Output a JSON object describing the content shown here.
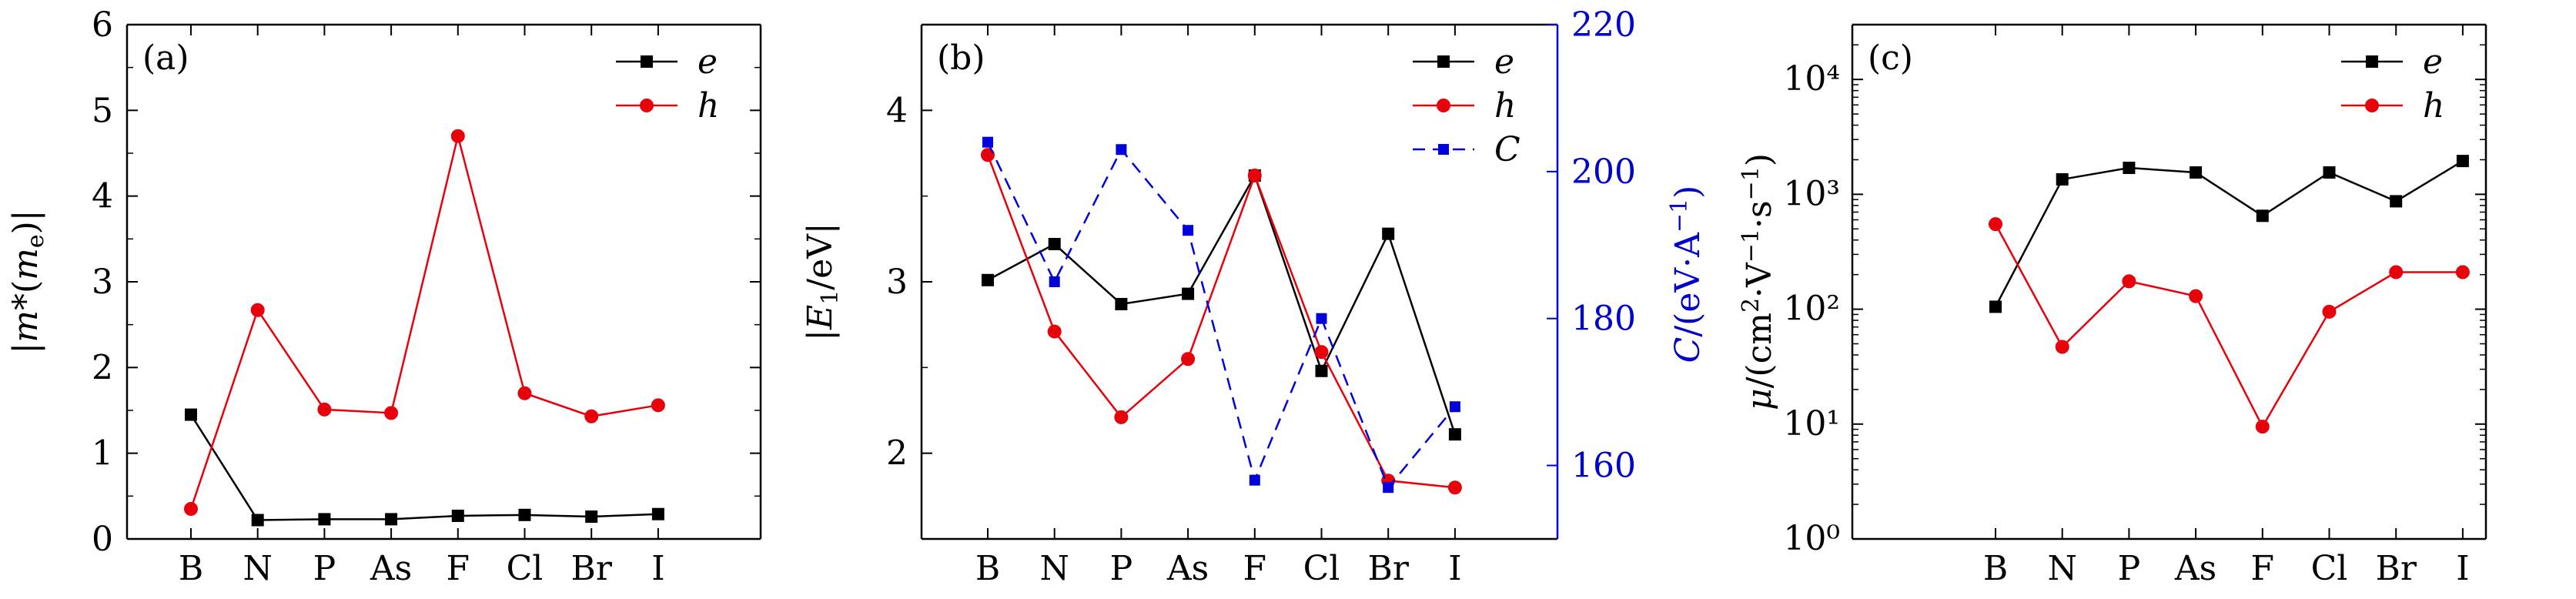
{
  "chart_data": [
    {
      "panel_label": "(a)",
      "type": "line",
      "categories": [
        "B",
        "N",
        "P",
        "As",
        "F",
        "Cl",
        "Br",
        "I"
      ],
      "ylabel": "|m*(me)|",
      "ylim": [
        0,
        6
      ],
      "yticks": [
        0,
        1,
        2,
        3,
        4,
        5,
        6
      ],
      "ytick_labels": [
        "0",
        "1",
        "2",
        "3",
        "4",
        "5",
        "6"
      ],
      "yscale": "linear",
      "legend_position": "top-right",
      "grid": false,
      "series": [
        {
          "name": "e",
          "color": "#000000",
          "marker": "square",
          "dash": "solid",
          "axis": "left",
          "values": [
            1.45,
            0.22,
            0.23,
            0.23,
            0.27,
            0.28,
            0.26,
            0.29
          ]
        },
        {
          "name": "h",
          "color": "#e8000b",
          "marker": "circle",
          "dash": "solid",
          "axis": "left",
          "values": [
            0.35,
            2.67,
            1.51,
            1.47,
            4.7,
            1.7,
            1.43,
            1.56
          ]
        }
      ]
    },
    {
      "panel_label": "(b)",
      "type": "line",
      "categories": [
        "B",
        "N",
        "P",
        "As",
        "F",
        "Cl",
        "Br",
        "I"
      ],
      "ylabel": "|E1/eV|",
      "ylim": [
        1.5,
        4.5
      ],
      "yticks": [
        2,
        3,
        4
      ],
      "ytick_labels": [
        "2",
        "3",
        "4"
      ],
      "yscale": "linear",
      "y2label": "C/(eV·A⁻¹)",
      "y2lim": [
        150,
        220
      ],
      "y2ticks": [
        160,
        180,
        200,
        220
      ],
      "y2tick_labels": [
        "160",
        "180",
        "200",
        "220"
      ],
      "y2_color": "#0000cc",
      "legend_position": "top-right",
      "grid": false,
      "series": [
        {
          "name": "e",
          "color": "#000000",
          "marker": "square",
          "dash": "solid",
          "axis": "left",
          "values": [
            3.01,
            3.22,
            2.87,
            2.93,
            3.62,
            2.48,
            3.28,
            2.11
          ]
        },
        {
          "name": "h",
          "color": "#e8000b",
          "marker": "circle",
          "dash": "solid",
          "axis": "left",
          "values": [
            3.74,
            2.71,
            2.21,
            2.55,
            3.62,
            2.59,
            1.84,
            1.8
          ]
        },
        {
          "name": "C",
          "color": "#0000dd",
          "marker": "square-small",
          "dash": "dashed",
          "axis": "right",
          "values": [
            204,
            185,
            203,
            192,
            158,
            180,
            157,
            168
          ]
        }
      ]
    },
    {
      "panel_label": "(c)",
      "type": "line",
      "categories": [
        "B",
        "N",
        "P",
        "As",
        "F",
        "Cl",
        "Br",
        "I"
      ],
      "ylabel": "μ/(cm²·V⁻¹·s⁻¹)",
      "ylim": [
        1,
        30000
      ],
      "yticks": [
        1,
        10,
        100,
        1000,
        10000
      ],
      "ytick_labels": [
        "10⁰",
        "10¹",
        "10²",
        "10³",
        "10⁴"
      ],
      "yscale": "log",
      "legend_position": "top-right",
      "grid": false,
      "series": [
        {
          "name": "e",
          "color": "#000000",
          "marker": "square",
          "dash": "solid",
          "axis": "left",
          "values": [
            105,
            1350,
            1700,
            1550,
            650,
            1550,
            870,
            1950
          ]
        },
        {
          "name": "h",
          "color": "#e8000b",
          "marker": "circle",
          "dash": "solid",
          "axis": "left",
          "values": [
            550,
            47,
            175,
            130,
            9.5,
            95,
            210,
            210
          ]
        }
      ]
    }
  ]
}
